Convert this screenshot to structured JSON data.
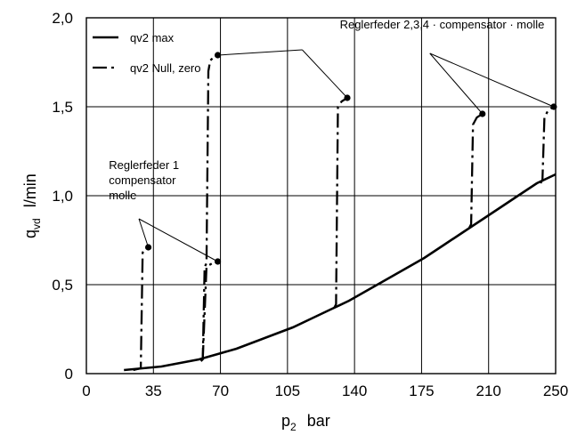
{
  "chart_data": {
    "type": "line",
    "xlabel": {
      "symbol": "p",
      "subscript": "2",
      "unit": "bar"
    },
    "ylabel": {
      "symbol": "q",
      "subscript": "vd",
      "unit": "l/min"
    },
    "xticks": [
      "0",
      "35",
      "70",
      "105",
      "140",
      "175",
      "210",
      "250"
    ],
    "yticks": [
      "0",
      "0,5",
      "1,0",
      "1,5",
      "2,0"
    ],
    "xlim": [
      0,
      250
    ],
    "ylim": [
      0,
      2.0
    ],
    "grid": true,
    "legend_position": "top-left",
    "series": [
      {
        "name": "qv2 max",
        "style": "solid",
        "x": [
          20,
          30,
          40,
          50,
          60,
          70,
          80,
          90,
          100,
          110,
          120,
          130,
          140,
          150,
          160,
          170,
          180,
          190,
          200,
          210,
          220,
          230,
          240,
          250
        ],
        "y": [
          0.02,
          0.03,
          0.04,
          0.06,
          0.08,
          0.11,
          0.14,
          0.18,
          0.22,
          0.26,
          0.31,
          0.36,
          0.41,
          0.47,
          0.53,
          0.59,
          0.65,
          0.72,
          0.79,
          0.86,
          0.93,
          1.0,
          1.07,
          1.12
        ]
      },
      {
        "name": "qv2 Null, zero",
        "style": "dashed",
        "segments": [
          {
            "x": [
              25,
              29,
              30,
              31,
              33
            ],
            "y": [
              0.02,
              0.03,
              0.68,
              0.7,
              0.71
            ]
          },
          {
            "x": [
              61,
              62,
              63,
              64,
              65,
              66,
              68,
              70
            ],
            "y": [
              0.07,
              0.08,
              0.6,
              0.62,
              1.7,
              1.76,
              1.78,
              1.79
            ]
          },
          {
            "x": [
              62,
              64,
              67,
              70
            ],
            "y": [
              0.08,
              0.6,
              0.62,
              0.63
            ]
          },
          {
            "x": [
              132,
              133,
              134,
              136,
              139
            ],
            "y": [
              0.37,
              0.39,
              1.5,
              1.53,
              1.55
            ]
          },
          {
            "x": [
              204,
              205,
              206,
              208,
              211
            ],
            "y": [
              0.82,
              0.84,
              1.4,
              1.44,
              1.46
            ]
          },
          {
            "x": [
              242,
              243,
              244,
              246,
              249
            ],
            "y": [
              1.07,
              1.09,
              1.44,
              1.48,
              1.5
            ]
          }
        ]
      }
    ],
    "endpoints": [
      {
        "x": 33,
        "y": 0.71
      },
      {
        "x": 70,
        "y": 0.63
      },
      {
        "x": 70,
        "y": 1.79
      },
      {
        "x": 139,
        "y": 1.55
      },
      {
        "x": 211,
        "y": 1.46
      },
      {
        "x": 249,
        "y": 1.5
      }
    ],
    "annotations": [
      {
        "lines": [
          "Reglerfeder 2,3,4 · compensator · molle"
        ],
        "anchor": {
          "x": 135,
          "y": 1.94
        },
        "pointers": [
          {
            "from": {
              "x": 115,
              "y": 1.82
            },
            "to": {
              "x": 139,
              "y": 1.55
            }
          },
          {
            "from": {
              "x": 115,
              "y": 1.82
            },
            "to": {
              "x": 70,
              "y": 1.79
            }
          },
          {
            "from": {
              "x": 183,
              "y": 1.8
            },
            "to": {
              "x": 211,
              "y": 1.46
            }
          },
          {
            "from": {
              "x": 183,
              "y": 1.8
            },
            "to": {
              "x": 249,
              "y": 1.5
            }
          }
        ]
      },
      {
        "lines": [
          "Reglerfeder 1",
          "compensator",
          "molle"
        ],
        "anchor": {
          "x": 12,
          "y": 1.15
        },
        "pointers": [
          {
            "from": {
              "x": 28,
              "y": 0.87
            },
            "to": {
              "x": 33,
              "y": 0.71
            }
          },
          {
            "from": {
              "x": 28,
              "y": 0.87
            },
            "to": {
              "x": 70,
              "y": 0.63
            }
          }
        ]
      }
    ]
  }
}
